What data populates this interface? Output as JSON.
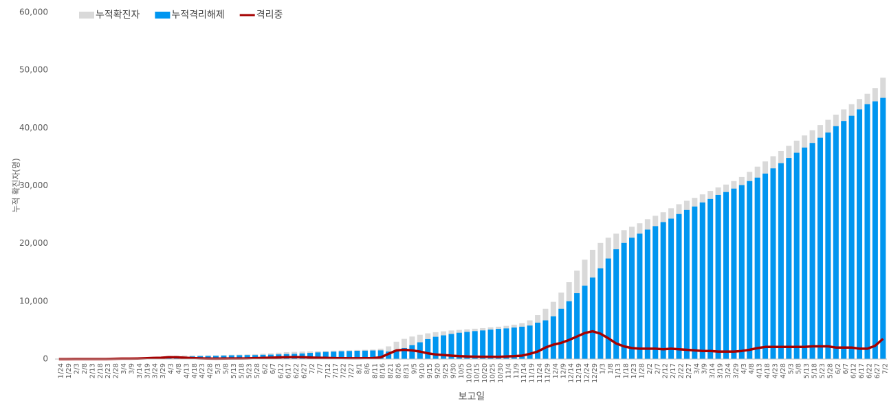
{
  "chart_data": {
    "type": "combo",
    "y_label": "누적 확진자(명)",
    "x_label": "보고일",
    "legend": "top-left",
    "ylim": [
      0,
      60000
    ],
    "yticks": [
      0,
      {
        "value": 10000,
        "label": "10,000"
      },
      {
        "value": 20000,
        "label": "20,000"
      },
      {
        "value": 30000,
        "label": "30,000"
      },
      {
        "value": 40000,
        "label": "40,000"
      },
      {
        "value": 50000,
        "label": "50,000"
      },
      {
        "value": 60000,
        "label": "60,000"
      }
    ],
    "categories": [
      "1/24",
      "1/29",
      "2/3",
      "2/8",
      "2/13",
      "2/18",
      "2/23",
      "2/28",
      "3/4",
      "3/9",
      "3/14",
      "3/19",
      "3/24",
      "3/29",
      "4/3",
      "4/8",
      "4/13",
      "4/18",
      "4/23",
      "4/28",
      "5/3",
      "5/8",
      "5/13",
      "5/18",
      "5/23",
      "5/28",
      "6/2",
      "6/7",
      "6/12",
      "6/17",
      "6/22",
      "6/27",
      "7/2",
      "7/7",
      "7/12",
      "7/17",
      "7/22",
      "7/27",
      "8/1",
      "8/6",
      "8/11",
      "8/16",
      "8/21",
      "8/26",
      "8/31",
      "9/5",
      "9/10",
      "9/15",
      "9/20",
      "9/25",
      "9/30",
      "10/5",
      "10/10",
      "10/15",
      "10/20",
      "10/25",
      "10/30",
      "11/4",
      "11/9",
      "11/14",
      "11/19",
      "11/24",
      "11/29",
      "12/4",
      "12/9",
      "12/14",
      "12/19",
      "12/24",
      "12/29",
      "1/3",
      "1/8",
      "1/13",
      "1/18",
      "1/23",
      "1/28",
      "2/2",
      "2/7",
      "2/12",
      "2/17",
      "2/22",
      "2/27",
      "3/4",
      "3/9",
      "3/14",
      "3/19",
      "3/24",
      "3/29",
      "4/3",
      "4/8",
      "4/13",
      "4/18",
      "4/23",
      "4/28",
      "5/3",
      "5/8",
      "5/13",
      "5/18",
      "5/23",
      "5/28",
      "6/2",
      "6/7",
      "6/12",
      "6/17",
      "6/22",
      "6/27",
      "7/2"
    ],
    "series": [
      {
        "name": "누적확진자",
        "type": "bar",
        "color": "#d9d9d9",
        "values": [
          0,
          0,
          7,
          11,
          14,
          15,
          20,
          60,
          90,
          100,
          130,
          190,
          310,
          380,
          540,
          590,
          620,
          630,
          630,
          630,
          640,
          690,
          750,
          770,
          800,
          850,
          930,
          1000,
          1100,
          1200,
          1250,
          1300,
          1330,
          1380,
          1420,
          1450,
          1500,
          1520,
          1560,
          1600,
          1650,
          1800,
          2200,
          3000,
          3500,
          3900,
          4200,
          4450,
          4650,
          4800,
          4950,
          5050,
          5150,
          5250,
          5350,
          5500,
          5600,
          5750,
          5950,
          6200,
          6700,
          7600,
          8700,
          9900,
          11500,
          13300,
          15300,
          17200,
          18900,
          20100,
          21000,
          21700,
          22300,
          22900,
          23500,
          24200,
          24800,
          25400,
          26100,
          26800,
          27400,
          27900,
          28500,
          29100,
          29700,
          30200,
          30800,
          31500,
          32400,
          33300,
          34200,
          35100,
          36000,
          36900,
          37800,
          38700,
          39600,
          40500,
          41400,
          42300,
          43200,
          44100,
          45000,
          45900,
          46900,
          48700
        ]
      },
      {
        "name": "누적격리해제",
        "type": "bar",
        "color": "#0096f0",
        "values": [
          0,
          0,
          0,
          1,
          2,
          5,
          5,
          10,
          20,
          30,
          40,
          60,
          120,
          160,
          220,
          280,
          380,
          460,
          510,
          540,
          570,
          600,
          640,
          660,
          680,
          680,
          730,
          760,
          810,
          870,
          900,
          970,
          1060,
          1150,
          1220,
          1280,
          1350,
          1390,
          1430,
          1450,
          1480,
          1500,
          1300,
          1500,
          1900,
          2400,
          2900,
          3450,
          3850,
          4100,
          4350,
          4550,
          4700,
          4830,
          4950,
          5100,
          5220,
          5300,
          5450,
          5600,
          5800,
          6300,
          6700,
          7400,
          8700,
          10000,
          11400,
          12700,
          14100,
          15700,
          17400,
          19000,
          20100,
          21000,
          21700,
          22400,
          23000,
          23700,
          24300,
          25100,
          25800,
          26400,
          27100,
          27700,
          28400,
          28900,
          29500,
          30100,
          30800,
          31400,
          32100,
          33000,
          33900,
          34800,
          35700,
          36600,
          37400,
          38300,
          39200,
          40300,
          41200,
          42100,
          43200,
          44100,
          44600,
          45200
        ]
      },
      {
        "name": "격리중",
        "type": "line",
        "color": "#a50000",
        "values": [
          0,
          0,
          7,
          10,
          12,
          10,
          15,
          50,
          70,
          70,
          90,
          130,
          190,
          220,
          320,
          310,
          240,
          170,
          120,
          90,
          70,
          90,
          110,
          110,
          120,
          170,
          200,
          240,
          290,
          330,
          350,
          330,
          270,
          230,
          200,
          170,
          150,
          130,
          130,
          150,
          170,
          300,
          900,
          1500,
          1600,
          1500,
          1300,
          1000,
          800,
          700,
          600,
          500,
          450,
          420,
          400,
          400,
          380,
          450,
          500,
          600,
          900,
          1300,
          2000,
          2500,
          2800,
          3300,
          3900,
          4500,
          4800,
          4400,
          3600,
          2700,
          2200,
          1900,
          1800,
          1800,
          1800,
          1700,
          1800,
          1700,
          1600,
          1500,
          1400,
          1400,
          1300,
          1300,
          1300,
          1400,
          1600,
          1900,
          2100,
          2100,
          2100,
          2100,
          2100,
          2100,
          2200,
          2200,
          2200,
          2000,
          2000,
          2000,
          1800,
          1800,
          2300,
          3500
        ]
      }
    ]
  }
}
